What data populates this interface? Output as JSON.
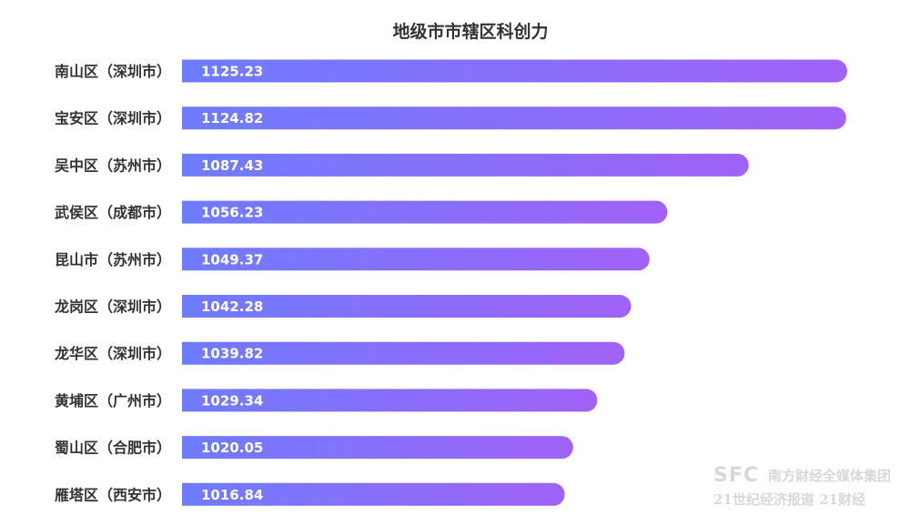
{
  "chart_data": {
    "type": "bar",
    "orientation": "horizontal",
    "title": "地级市市辖区科创力",
    "categories": [
      "南山区（深圳市）",
      "宝安区（深圳市）",
      "吴中区（苏州市）",
      "武侯区（成都市）",
      "昆山市（苏州市）",
      "龙岗区（深圳市）",
      "龙华区（深圳市）",
      "黄埔区（广州市）",
      "蜀山区（合肥市）",
      "雁塔区（西安市）"
    ],
    "values": [
      1125.23,
      1124.82,
      1087.43,
      1056.23,
      1049.37,
      1042.28,
      1039.82,
      1029.34,
      1020.05,
      1016.84
    ],
    "value_labels": [
      "1125.23",
      "1124.82",
      "1087.43",
      "1056.23",
      "1049.37",
      "1042.28",
      "1039.82",
      "1029.34",
      "1020.05",
      "1016.84"
    ],
    "xlim": [
      0,
      1125.23
    ],
    "gradient": [
      "#6e7cff",
      "#a162f7"
    ],
    "legend": "none",
    "grid": false
  },
  "watermark": {
    "sfc": "SFC",
    "group": "南方财经全媒体集团",
    "brand": "21世纪经济报道 21财经"
  },
  "colors": {
    "title": "#333333",
    "label": "#333333",
    "value_text": "#ffffff"
  }
}
